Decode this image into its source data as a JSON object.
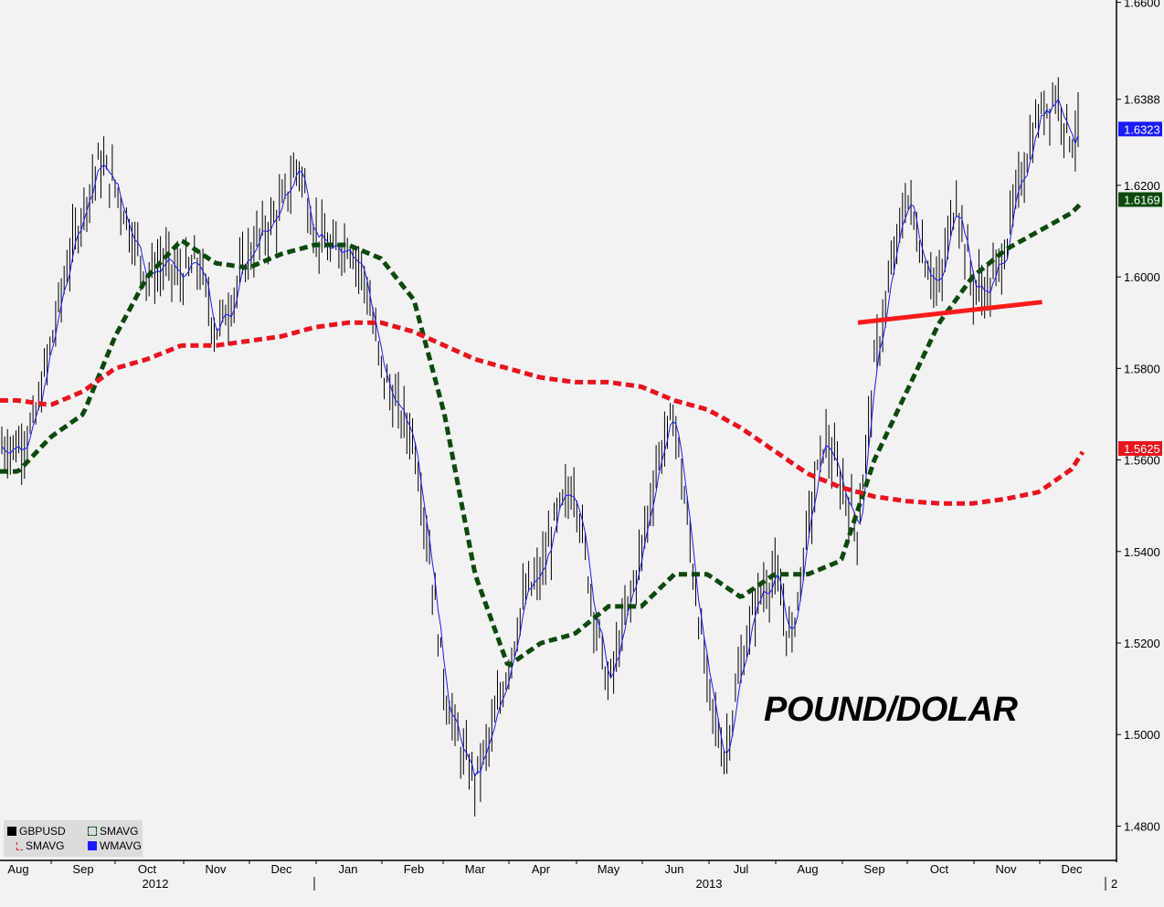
{
  "chart_data": {
    "type": "line",
    "annotation": "POUND/DOLAR",
    "ylim": [
      1.4725,
      1.6605
    ],
    "y_ticks": [
      "1.6600",
      "1.6388",
      "1.6200",
      "1.6000",
      "1.5800",
      "1.5600",
      "1.5400",
      "1.5200",
      "1.5000",
      "1.4800"
    ],
    "x_months": [
      "Aug",
      "Sep",
      "Oct",
      "Nov",
      "Dec",
      "Jan",
      "Feb",
      "Mar",
      "Apr",
      "May",
      "Jun",
      "Jul",
      "Aug",
      "Sep",
      "Oct",
      "Nov",
      "Dec"
    ],
    "years": [
      "2012",
      "2013"
    ],
    "edge_label": "2",
    "legend": [
      {
        "name": "GBPUSD",
        "color": "#000000",
        "style": "bar"
      },
      {
        "name": "SMAVG",
        "color": "#0b4a0b",
        "style": "dashed"
      },
      {
        "name": "SMAVG",
        "color": "#e8141e",
        "style": "dashed"
      },
      {
        "name": "WMAVG",
        "color": "#1a1aff",
        "style": "solid"
      }
    ],
    "last_values": [
      {
        "label": "1.6323",
        "value": 1.6323,
        "color": "#1a1aff"
      },
      {
        "label": "1.6169",
        "value": 1.6169,
        "color": "#0b4a0b"
      },
      {
        "label": "1.5625",
        "value": 1.5625,
        "color": "#e8141e"
      }
    ],
    "series": [
      {
        "name": "GBPUSD",
        "color": "#000000",
        "x": [
          0,
          0.25,
          0.5,
          0.75,
          1,
          1.25,
          1.5,
          1.75,
          2,
          2.25,
          2.5,
          2.75,
          3,
          3.25,
          3.5,
          3.75,
          4,
          4.25,
          4.5,
          4.75,
          5,
          5.25,
          5.5,
          5.75,
          6,
          6.25,
          6.5,
          6.75,
          7,
          7.25,
          7.5,
          7.75,
          8,
          8.25,
          8.5,
          8.75,
          9,
          9.25,
          9.5,
          9.75,
          10,
          10.25,
          10.5,
          10.75,
          11,
          11.25,
          11.5,
          11.75,
          12,
          12.25,
          12.5,
          12.75,
          13,
          13.25,
          13.5,
          13.75,
          14,
          14.25,
          14.5,
          14.75,
          15,
          15.25,
          15.5,
          15.75,
          16,
          16.2
        ],
        "values": [
          1.563,
          1.568,
          1.585,
          1.602,
          1.615,
          1.625,
          1.62,
          1.61,
          1.6,
          1.603,
          1.6,
          1.603,
          1.588,
          1.595,
          1.605,
          1.61,
          1.615,
          1.625,
          1.61,
          1.605,
          1.608,
          1.6,
          1.58,
          1.571,
          1.565,
          1.54,
          1.51,
          1.497,
          1.49,
          1.5,
          1.515,
          1.53,
          1.535,
          1.548,
          1.555,
          1.53,
          1.51,
          1.525,
          1.54,
          1.56,
          1.57,
          1.54,
          1.51,
          1.495,
          1.515,
          1.53,
          1.535,
          1.52,
          1.545,
          1.565,
          1.555,
          1.545,
          1.58,
          1.6,
          1.618,
          1.605,
          1.597,
          1.618,
          1.598,
          1.597,
          1.607,
          1.623,
          1.635,
          1.64,
          1.63,
          1.634
        ]
      },
      {
        "name": "SMAVG",
        "color": "#0b4a0b",
        "x": [
          0,
          0.5,
          1,
          1.5,
          2,
          2.5,
          3,
          3.5,
          4,
          4.5,
          5,
          5.5,
          6,
          6.5,
          7,
          7.5,
          8,
          8.5,
          9,
          9.5,
          10,
          10.5,
          11,
          11.5,
          12,
          12.5,
          13,
          13.5,
          14,
          14.5,
          15,
          15.5,
          16,
          16.2
        ],
        "values": [
          1.5575,
          1.565,
          1.57,
          1.587,
          1.6,
          1.608,
          1.603,
          1.602,
          1.605,
          1.607,
          1.607,
          1.604,
          1.595,
          1.57,
          1.535,
          1.515,
          1.52,
          1.522,
          1.528,
          1.528,
          1.535,
          1.535,
          1.53,
          1.535,
          1.535,
          1.538,
          1.56,
          1.575,
          1.59,
          1.6,
          1.606,
          1.61,
          1.614,
          1.6169
        ]
      },
      {
        "name": "SMAVG",
        "color": "#e8141e",
        "x": [
          0,
          0.5,
          1,
          1.5,
          2,
          2.5,
          3,
          3.5,
          4,
          4.5,
          5,
          5.5,
          6,
          6.5,
          7,
          7.5,
          8,
          8.5,
          9,
          9.5,
          10,
          10.5,
          11,
          11.5,
          12,
          12.5,
          13,
          13.5,
          14,
          14.5,
          15,
          15.5,
          16,
          16.2
        ],
        "values": [
          1.573,
          1.572,
          1.575,
          1.58,
          1.582,
          1.585,
          1.585,
          1.586,
          1.587,
          1.589,
          1.59,
          1.59,
          1.588,
          1.585,
          1.582,
          1.58,
          1.578,
          1.577,
          1.577,
          1.576,
          1.573,
          1.571,
          1.567,
          1.562,
          1.557,
          1.554,
          1.552,
          1.551,
          1.5505,
          1.5505,
          1.5515,
          1.553,
          1.558,
          1.5625
        ]
      }
    ],
    "trendline": {
      "color": "#ff1a1a",
      "x": [
        13,
        15.8
      ],
      "values": [
        1.59,
        1.5945
      ]
    }
  }
}
